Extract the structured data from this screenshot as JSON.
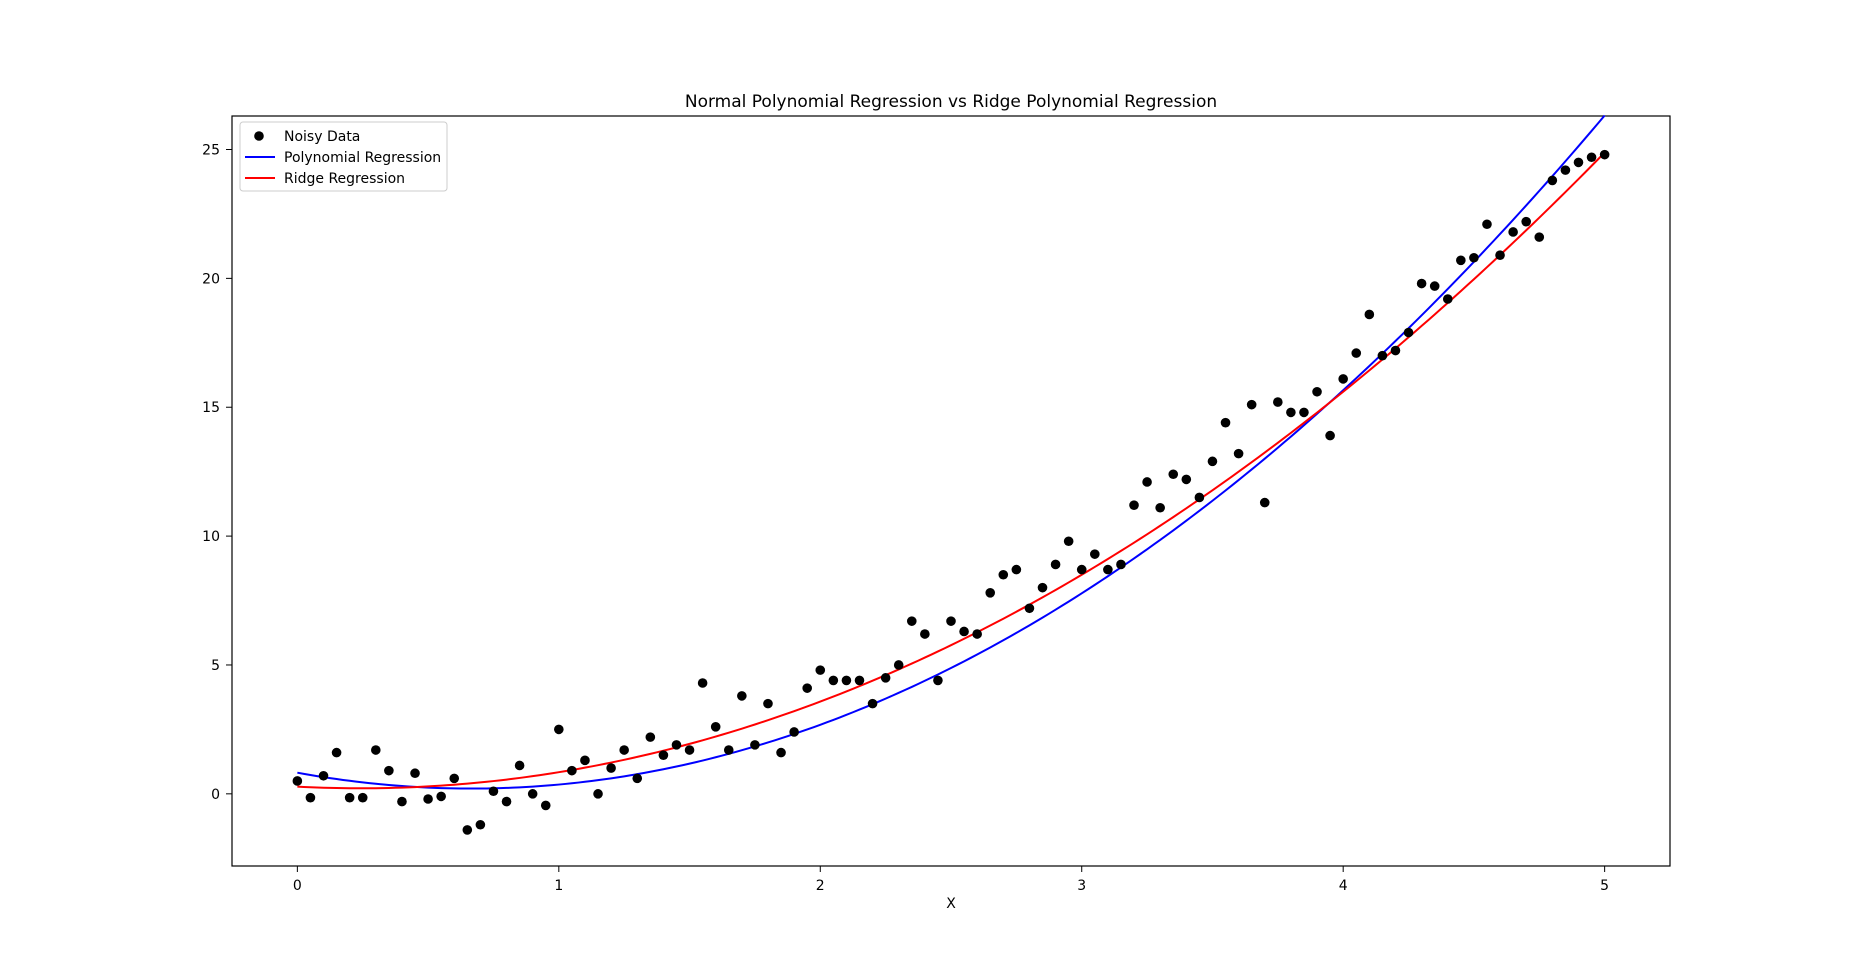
{
  "chart_data": {
    "type": "scatter",
    "title": "Normal Polynomial Regression vs Ridge Polynomial Regression",
    "xlabel": "X",
    "ylabel": "",
    "xlim": [
      -0.25,
      5.25
    ],
    "ylim": [
      -2.8,
      26.3
    ],
    "xticks": [
      0,
      1,
      2,
      3,
      4,
      5
    ],
    "yticks": [
      0,
      5,
      10,
      15,
      20,
      25
    ],
    "grid": false,
    "legend_position": "top-left",
    "colors": {
      "points": "#000000",
      "polynomial": "#0000ff",
      "ridge": "#ff0000"
    },
    "series": [
      {
        "name": "Noisy Data",
        "kind": "scatter",
        "x": [
          0.0,
          0.05,
          0.1,
          0.15,
          0.2,
          0.25,
          0.3,
          0.35,
          0.4,
          0.45,
          0.5,
          0.55,
          0.6,
          0.65,
          0.7,
          0.75,
          0.8,
          0.85,
          0.9,
          0.95,
          1.0,
          1.05,
          1.1,
          1.15,
          1.2,
          1.25,
          1.3,
          1.35,
          1.4,
          1.45,
          1.5,
          1.55,
          1.6,
          1.65,
          1.7,
          1.75,
          1.8,
          1.85,
          1.9,
          1.95,
          2.0,
          2.05,
          2.1,
          2.15,
          2.2,
          2.25,
          2.3,
          2.35,
          2.4,
          2.45,
          2.5,
          2.55,
          2.6,
          2.65,
          2.7,
          2.75,
          2.8,
          2.85,
          2.9,
          2.95,
          3.0,
          3.05,
          3.1,
          3.15,
          3.2,
          3.25,
          3.3,
          3.35,
          3.4,
          3.45,
          3.5,
          3.55,
          3.6,
          3.65,
          3.7,
          3.75,
          3.8,
          3.85,
          3.9,
          3.95,
          4.0,
          4.05,
          4.1,
          4.15,
          4.2,
          4.25,
          4.3,
          4.35,
          4.4,
          4.45,
          4.5,
          4.55,
          4.6,
          4.65,
          4.7,
          4.75,
          4.8,
          4.85,
          4.9,
          4.95,
          5.0
        ],
        "y": [
          0.5,
          -0.15,
          0.7,
          1.6,
          -0.15,
          -0.15,
          1.7,
          0.9,
          -0.3,
          0.8,
          -0.2,
          -0.1,
          0.6,
          -1.4,
          -1.2,
          0.1,
          -0.3,
          1.1,
          0.0,
          -0.45,
          2.5,
          0.9,
          1.3,
          0.0,
          1.0,
          1.7,
          0.6,
          2.2,
          1.5,
          1.9,
          1.7,
          4.3,
          2.6,
          1.7,
          3.8,
          1.9,
          3.5,
          1.6,
          2.4,
          4.1,
          4.8,
          4.4,
          4.4,
          4.4,
          3.5,
          4.5,
          5.0,
          6.7,
          6.2,
          4.4,
          6.7,
          6.3,
          6.2,
          7.8,
          8.5,
          8.7,
          7.2,
          8.0,
          8.9,
          9.8,
          8.7,
          9.3,
          8.7,
          8.9,
          11.2,
          12.1,
          11.1,
          12.4,
          12.2,
          11.5,
          12.9,
          14.4,
          13.2,
          15.1,
          11.3,
          15.2,
          14.8,
          14.8,
          15.6,
          13.9,
          16.1,
          17.1,
          18.6,
          17.0,
          17.2,
          17.9,
          19.8,
          19.7,
          19.2,
          20.7,
          20.8,
          22.1,
          20.9,
          21.8,
          22.2,
          21.6,
          23.8,
          24.2,
          24.5,
          24.7,
          24.8
        ]
      },
      {
        "name": "Polynomial Regression",
        "kind": "line",
        "coefficients": [
          0.82,
          -1.85,
          1.39
        ]
      },
      {
        "name": "Ridge Regression",
        "kind": "line",
        "coefficients": [
          0.28,
          -0.53,
          1.09
        ]
      }
    ]
  }
}
